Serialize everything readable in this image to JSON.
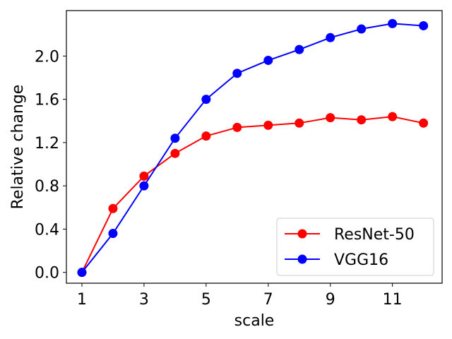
{
  "chart_data": {
    "type": "line",
    "title": "",
    "xlabel": "scale",
    "ylabel": "Relative change",
    "x": [
      1,
      2,
      3,
      4,
      5,
      6,
      7,
      8,
      9,
      10,
      11,
      12
    ],
    "xlim": [
      0.5,
      12.6
    ],
    "ylim": [
      -0.1,
      2.42
    ],
    "xticks": [
      1,
      3,
      5,
      7,
      9,
      11
    ],
    "yticks": [
      0.0,
      0.4,
      0.8,
      1.2,
      1.6,
      2.0
    ],
    "xtick_labels": [
      "1",
      "3",
      "5",
      "7",
      "9",
      "11"
    ],
    "ytick_labels": [
      "0.0",
      "0.4",
      "0.8",
      "1.2",
      "1.6",
      "2.0"
    ],
    "grid": false,
    "legend_position": "lower-right",
    "series": [
      {
        "name": "ResNet-50",
        "color": "#ff0000",
        "marker": "circle",
        "values": [
          0.0,
          0.59,
          0.89,
          1.1,
          1.26,
          1.34,
          1.36,
          1.38,
          1.43,
          1.41,
          1.44,
          1.38
        ]
      },
      {
        "name": "VGG16",
        "color": "#0000ff",
        "marker": "circle",
        "values": [
          0.0,
          0.36,
          0.8,
          1.24,
          1.6,
          1.84,
          1.96,
          2.06,
          2.17,
          2.25,
          2.3,
          2.28
        ]
      }
    ]
  }
}
